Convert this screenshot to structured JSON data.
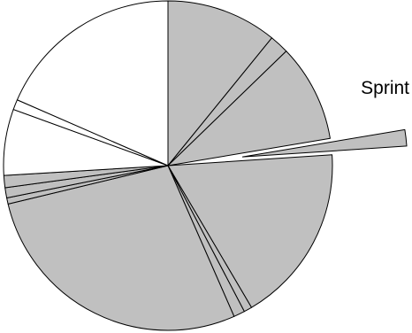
{
  "chart_data": {
    "type": "pie",
    "categories": [
      null,
      null,
      null,
      "Sprint",
      null,
      null,
      null,
      null,
      null,
      null,
      null,
      null,
      null,
      null
    ],
    "values": [
      10.9,
      1.9,
      9.6,
      1.6,
      17.6,
      0.8,
      1.1,
      27.9,
      0.6,
      1.0,
      1.2,
      6.5,
      1.0,
      18.5
    ],
    "colors": [
      "#c0c0c0",
      "#c0c0c0",
      "#c0c0c0",
      "#c0c0c0",
      "#c0c0c0",
      "#c0c0c0",
      "#c0c0c0",
      "#c0c0c0",
      "#c0c0c0",
      "#c0c0c0",
      "#c0c0c0",
      "#ffffff",
      "#ffffff",
      "#ffffff"
    ]
  }
}
